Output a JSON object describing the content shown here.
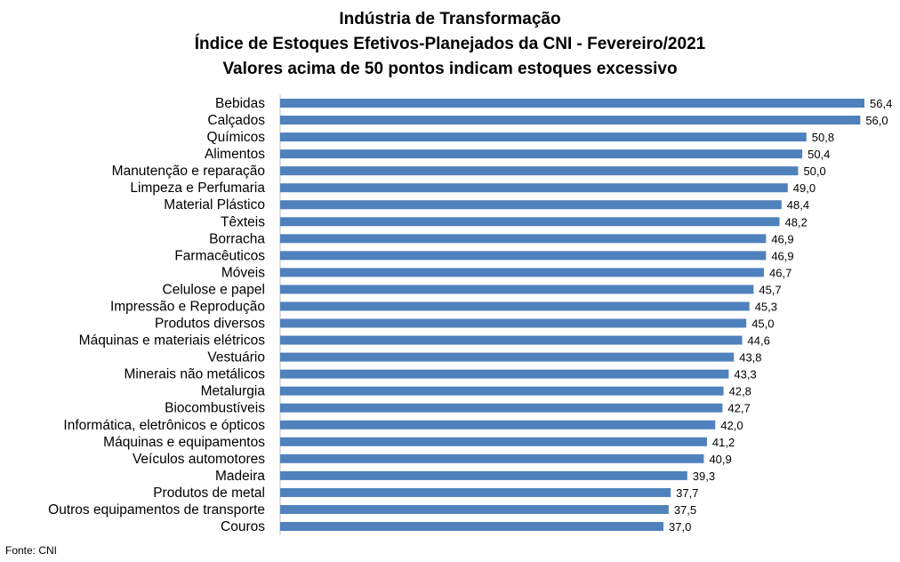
{
  "chart_data": {
    "type": "bar",
    "orientation": "horizontal",
    "title": "Indústria de Transformação",
    "subtitle": "Índice de Estoques Efetivos-Planejados da CNI - Fevereiro/2021",
    "subtitle2": "Valores acima de 50 pontos indicam estoques excessivo",
    "categories": [
      "Bebidas",
      "Calçados",
      "Químicos",
      "Alimentos",
      "Manutenção e reparação",
      "Limpeza e Perfumaria",
      "Material Plástico",
      "Têxteis",
      "Borracha",
      "Farmacêuticos",
      "Móveis",
      "Celulose e papel",
      "Impressão e Reprodução",
      "Produtos diversos",
      "Máquinas e materiais elétricos",
      "Vestuário",
      "Minerais não metálicos",
      "Metalurgia",
      "Biocombustíveis",
      "Informática, eletrônicos e ópticos",
      "Máquinas e equipamentos",
      "Veículos automotores",
      "Madeira",
      "Produtos de metal",
      "Outros equipamentos de transporte",
      "Couros"
    ],
    "values": [
      56.4,
      56.0,
      50.8,
      50.4,
      50.0,
      49.0,
      48.4,
      48.2,
      46.9,
      46.9,
      46.7,
      45.7,
      45.3,
      45.0,
      44.6,
      43.8,
      43.3,
      42.8,
      42.7,
      42.0,
      41.2,
      40.9,
      39.3,
      37.7,
      37.5,
      37.0
    ],
    "value_labels": [
      "56,4",
      "56,0",
      "50,8",
      "50,4",
      "50,0",
      "49,0",
      "48,4",
      "48,2",
      "46,9",
      "46,9",
      "46,7",
      "45,7",
      "45,3",
      "45,0",
      "44,6",
      "43,8",
      "43,3",
      "42,8",
      "42,7",
      "42,0",
      "41,2",
      "40,9",
      "39,3",
      "37,7",
      "37,5",
      "37,0"
    ],
    "bar_color": "#4f81bd",
    "grid": false
  },
  "source": "Fonte: CNI"
}
